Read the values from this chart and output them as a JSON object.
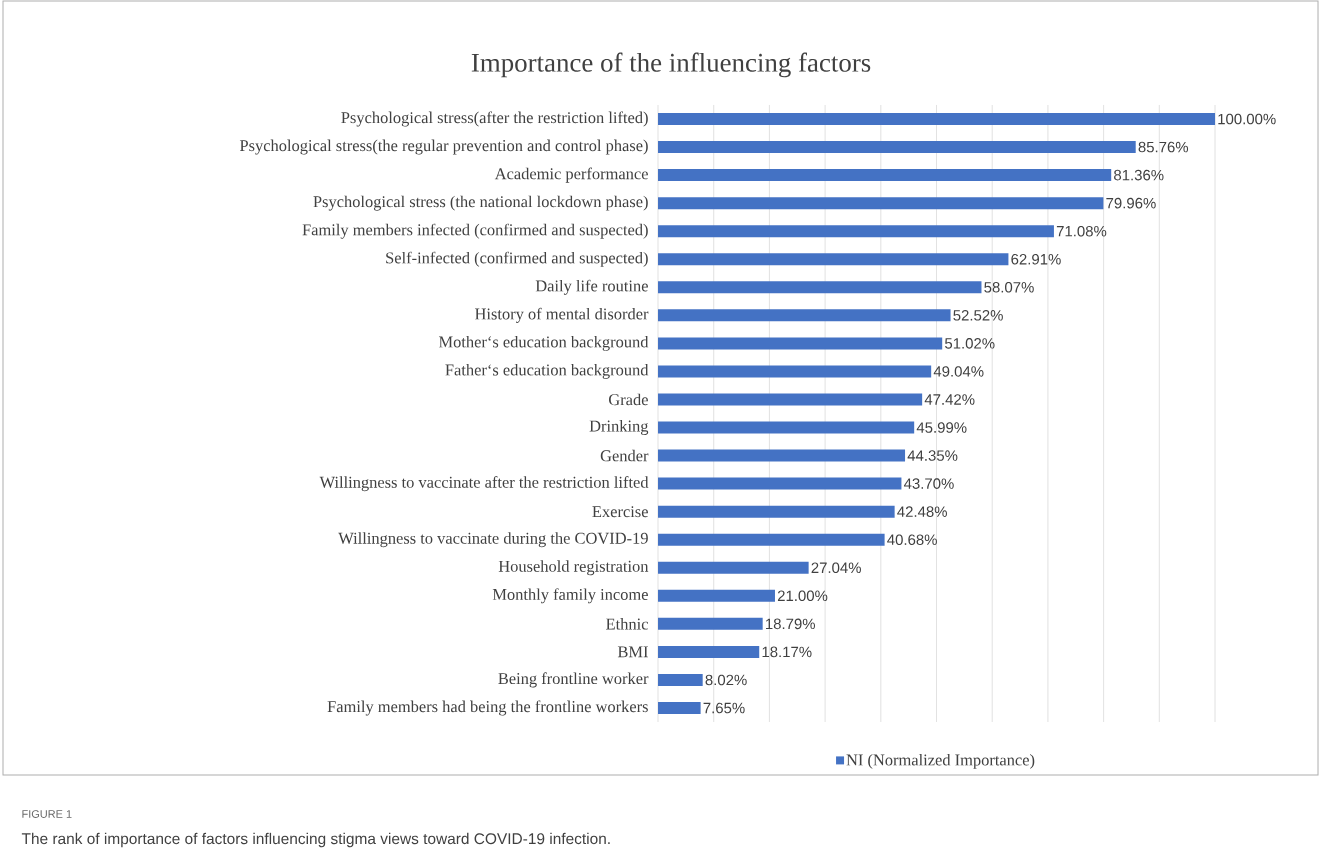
{
  "chart_data": {
    "type": "bar",
    "orientation": "horizontal",
    "title": "Importance of the influencing factors",
    "categories": [
      "Psychological stress(after the restriction lifted)",
      "Psychological stress(the regular prevention and control phase)",
      "Academic performance",
      "Psychological stress (the national lockdown phase)",
      "Family members infected (confirmed and suspected)",
      "Self-infected (confirmed and suspected)",
      "Daily life routine",
      "History of mental disorder",
      "Mother‘s education background",
      "Father‘s education background",
      "Grade",
      "Drinking",
      "Gender",
      "Willingness to vaccinate after the restriction lifted",
      "Exercise",
      "Willingness to vaccinate during the COVID-19",
      "Household registration",
      "Monthly family income",
      "Ethnic",
      "BMI",
      "Being frontline worker",
      "Family members had being the frontline workers"
    ],
    "series": [
      {
        "name": "NI (Normalized Importance)",
        "color": "#4472c4",
        "values": [
          100.0,
          85.76,
          81.36,
          79.96,
          71.08,
          62.91,
          58.07,
          52.52,
          51.02,
          49.04,
          47.42,
          45.99,
          44.35,
          43.7,
          42.48,
          40.68,
          27.04,
          21.0,
          18.79,
          18.17,
          8.02,
          7.65
        ],
        "value_labels": [
          "100.00%",
          "85.76%",
          "81.36%",
          "79.96%",
          "71.08%",
          "62.91%",
          "58.07%",
          "52.52%",
          "51.02%",
          "49.04%",
          "47.42%",
          "45.99%",
          "44.35%",
          "43.70%",
          "42.48%",
          "40.68%",
          "27.04%",
          "21.00%",
          "18.79%",
          "18.17%",
          "8.02%",
          "7.65%"
        ]
      }
    ],
    "xlim": [
      0,
      100
    ],
    "xticks": [
      {
        "value": 0,
        "label": null
      },
      {
        "value": 10,
        "label": null
      },
      {
        "value": 20,
        "label": null
      },
      {
        "value": 30,
        "label": null
      },
      {
        "value": 40,
        "label": null
      },
      {
        "value": 50,
        "label": null
      },
      {
        "value": 60,
        "label": null
      },
      {
        "value": 70,
        "label": null
      },
      {
        "value": 80,
        "label": null
      },
      {
        "value": 90,
        "label": null
      },
      {
        "value": 100,
        "label": null
      }
    ],
    "grid": "x",
    "legend": "bottom",
    "tick_labels": "y",
    "annotations": [
      "FIGURE 1",
      "The rank of importance of factors influencing stigma views toward COVID-19 infection."
    ]
  }
}
